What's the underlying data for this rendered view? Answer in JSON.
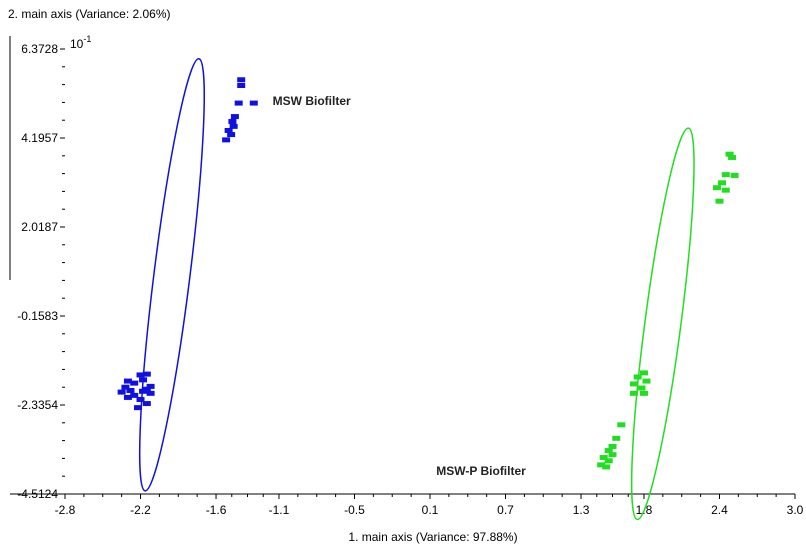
{
  "chart_data": {
    "type": "scatter",
    "title": "",
    "xlabel": "1. main axis (Variance: 97.88%)",
    "ylabel": "2. main axis (Variance: 2.06%)",
    "y_multiplier": "10",
    "y_multiplier_exp": "-1",
    "xlim": [
      -2.8,
      3.0
    ],
    "ylim": [
      -4.5124,
      6.3728
    ],
    "x_ticks": [
      "-2.8",
      "-2.2",
      "-1.6",
      "-1.1",
      "-0.5",
      "0.1",
      "0.7",
      "1.3",
      "1.8",
      "2.4",
      "3.0"
    ],
    "x_tick_values": [
      -2.8,
      -2.2,
      -1.6,
      -1.1,
      -0.5,
      0.1,
      0.7,
      1.3,
      1.8,
      2.4,
      3.0
    ],
    "y_ticks": [
      "-4.5124",
      "-2.3354",
      "-0.1583",
      "2.0187",
      "4.1957",
      "6.3728"
    ],
    "y_tick_values": [
      -4.5124,
      -2.3354,
      -0.1583,
      2.0187,
      4.1957,
      6.3728
    ],
    "grid": false,
    "series": [
      {
        "name": "MSW Biofilter",
        "color": "#1010e0",
        "ellipse": {
          "cx": -1.95,
          "cy": 0.85,
          "rx": 5.7,
          "ry": 0.55,
          "angle_deg": 68
        },
        "points": [
          [
            -1.4,
            5.62
          ],
          [
            -1.4,
            5.48
          ],
          [
            -1.42,
            5.05
          ],
          [
            -1.3,
            5.05
          ],
          [
            -1.45,
            4.72
          ],
          [
            -1.47,
            4.6
          ],
          [
            -1.46,
            4.48
          ],
          [
            -1.5,
            4.38
          ],
          [
            -1.48,
            4.28
          ],
          [
            -1.52,
            4.15
          ],
          [
            -2.15,
            -1.58
          ],
          [
            -2.2,
            -1.6
          ],
          [
            -2.18,
            -1.72
          ],
          [
            -2.3,
            -1.75
          ],
          [
            -2.25,
            -1.8
          ],
          [
            -2.12,
            -1.88
          ],
          [
            -2.32,
            -1.9
          ],
          [
            -2.15,
            -1.95
          ],
          [
            -2.28,
            -1.98
          ],
          [
            -2.18,
            -2.0
          ],
          [
            -2.35,
            -2.02
          ],
          [
            -2.12,
            -2.05
          ],
          [
            -2.25,
            -2.1
          ],
          [
            -2.3,
            -2.15
          ],
          [
            -2.2,
            -2.2
          ],
          [
            -2.15,
            -2.3
          ],
          [
            -2.22,
            -2.4
          ]
        ]
      },
      {
        "name": "MSW-P Biofilter",
        "color": "#22dd22",
        "ellipse": {
          "cx": 1.95,
          "cy": -0.35,
          "rx": 5.2,
          "ry": 0.45,
          "angle_deg": 67
        },
        "points": [
          [
            2.48,
            3.8
          ],
          [
            2.5,
            3.72
          ],
          [
            2.45,
            3.3
          ],
          [
            2.52,
            3.28
          ],
          [
            2.42,
            3.1
          ],
          [
            2.38,
            2.98
          ],
          [
            2.45,
            2.92
          ],
          [
            2.4,
            2.65
          ],
          [
            1.8,
            -1.55
          ],
          [
            1.75,
            -1.65
          ],
          [
            1.82,
            -1.75
          ],
          [
            1.72,
            -1.82
          ],
          [
            1.78,
            -1.92
          ],
          [
            1.72,
            -2.05
          ],
          [
            1.8,
            -2.05
          ],
          [
            1.62,
            -2.82
          ],
          [
            1.58,
            -3.15
          ],
          [
            1.55,
            -3.35
          ],
          [
            1.52,
            -3.45
          ],
          [
            1.55,
            -3.55
          ],
          [
            1.48,
            -3.62
          ],
          [
            1.52,
            -3.7
          ],
          [
            1.46,
            -3.8
          ],
          [
            1.5,
            -3.85
          ]
        ]
      }
    ],
    "annotations": [
      {
        "text": "MSW Biofilter",
        "x": -1.15,
        "y": 5.0
      },
      {
        "text": "MSW-P Biofilter",
        "x": 0.15,
        "y": -4.05
      }
    ]
  }
}
